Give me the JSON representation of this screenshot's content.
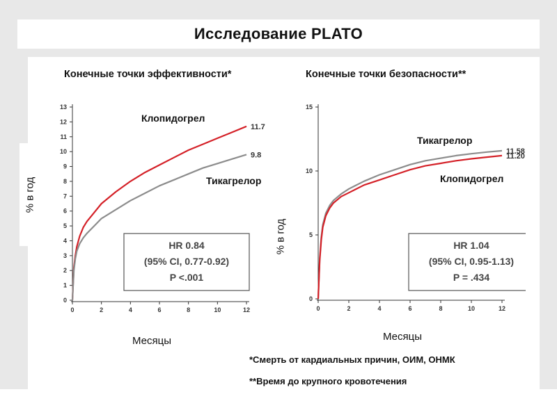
{
  "title": "Исследование PLATO",
  "headers": {
    "efficacy": "Конечные точки эффективности*",
    "safety": "Конечные точки безопасности**"
  },
  "footnotes": {
    "efficacy": "*Смерть от кардиальных причин, ОИМ, ОНМК",
    "safety": "**Время до крупного кровотечения"
  },
  "colors": {
    "clopidogrel": "#d42027",
    "ticagrelor": "#8c8c8c",
    "grid": "#cccccc"
  },
  "chart_data": [
    {
      "type": "line",
      "xlabel": "Месяцы",
      "ylabel": "% в год",
      "xticks": [
        "0",
        "2",
        "4",
        "6",
        "8",
        "10",
        "12"
      ],
      "yticks": [
        "0",
        "1",
        "2",
        "3",
        "4",
        "5",
        "6",
        "7",
        "8",
        "9",
        "10",
        "11",
        "12",
        "13"
      ],
      "xlim": [
        0,
        12
      ],
      "ylim": [
        0,
        13
      ],
      "series": [
        {
          "name": "Клопидогрел",
          "color": "#d42027",
          "end_label": "11.7",
          "x": [
            0,
            0.1,
            0.2,
            0.3,
            0.5,
            0.75,
            1,
            1.5,
            2,
            3,
            4,
            5,
            6,
            7,
            8,
            9,
            10,
            11,
            12
          ],
          "y": [
            0,
            2.2,
            3.0,
            3.6,
            4.3,
            4.9,
            5.3,
            5.9,
            6.5,
            7.3,
            8.0,
            8.6,
            9.1,
            9.6,
            10.1,
            10.5,
            10.9,
            11.3,
            11.7
          ]
        },
        {
          "name": "Тикагрелор",
          "color": "#8c8c8c",
          "end_label": "9.8",
          "x": [
            0,
            0.1,
            0.2,
            0.3,
            0.5,
            0.75,
            1,
            1.5,
            2,
            3,
            4,
            5,
            6,
            7,
            8,
            9,
            10,
            11,
            12
          ],
          "y": [
            0,
            2.0,
            2.8,
            3.3,
            3.8,
            4.2,
            4.5,
            5.0,
            5.5,
            6.1,
            6.7,
            7.2,
            7.7,
            8.1,
            8.5,
            8.9,
            9.2,
            9.5,
            9.8
          ]
        }
      ],
      "annotation": {
        "line1": "HR 0.84",
        "line2": "(95% CI, 0.77-0.92)",
        "line3": "P <.001"
      }
    },
    {
      "type": "line",
      "xlabel": "Месяцы",
      "ylabel": "% в год",
      "xticks": [
        "0",
        "2",
        "4",
        "6",
        "8",
        "10",
        "12"
      ],
      "yticks": [
        "0",
        "5",
        "10",
        "15"
      ],
      "xlim": [
        0,
        12
      ],
      "ylim": [
        0,
        15
      ],
      "series": [
        {
          "name": "Тикагрелор",
          "color": "#8c8c8c",
          "end_label": "11.58",
          "x": [
            0,
            0.1,
            0.2,
            0.3,
            0.5,
            0.75,
            1,
            1.5,
            2,
            3,
            4,
            5,
            6,
            7,
            8,
            9,
            10,
            11,
            12
          ],
          "y": [
            0,
            3.2,
            4.8,
            5.8,
            6.7,
            7.3,
            7.7,
            8.2,
            8.6,
            9.2,
            9.7,
            10.1,
            10.5,
            10.8,
            11.0,
            11.2,
            11.35,
            11.48,
            11.58
          ]
        },
        {
          "name": "Клопидогрел",
          "color": "#d42027",
          "end_label": "11.20",
          "x": [
            0,
            0.1,
            0.2,
            0.3,
            0.5,
            0.75,
            1,
            1.5,
            2,
            3,
            4,
            5,
            6,
            7,
            8,
            9,
            10,
            11,
            12
          ],
          "y": [
            0,
            3.0,
            4.6,
            5.6,
            6.5,
            7.1,
            7.5,
            8.0,
            8.3,
            8.9,
            9.3,
            9.7,
            10.1,
            10.4,
            10.6,
            10.8,
            10.95,
            11.08,
            11.2
          ]
        }
      ],
      "annotation": {
        "line1": "HR 1.04",
        "line2": "(95% CI, 0.95-1.13)",
        "line3": "P = .434"
      }
    }
  ]
}
